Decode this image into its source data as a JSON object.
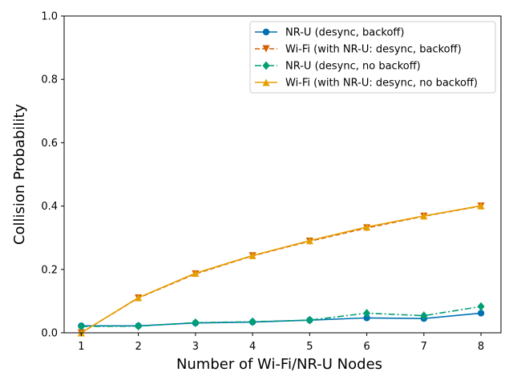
{
  "chart_data": {
    "type": "line",
    "title": "",
    "xlabel": "Number of Wi-Fi/NR-U Nodes",
    "ylabel": "Collision Probability",
    "x": [
      1,
      2,
      3,
      4,
      5,
      6,
      7,
      8
    ],
    "xlim": [
      0.7,
      8.35
    ],
    "ylim": [
      0,
      1.0
    ],
    "xticks": [
      "1",
      "2",
      "3",
      "4",
      "5",
      "6",
      "7",
      "8"
    ],
    "yticks": [
      "0.0",
      "0.2",
      "0.4",
      "0.6",
      "0.8",
      "1.0"
    ],
    "ytick_values": [
      0,
      0.2,
      0.4,
      0.6,
      0.8,
      1.0
    ],
    "grid": false,
    "legend_position": "top-right",
    "series": [
      {
        "name": "NR-U (desync, backoff)",
        "values": [
          0.022,
          0.022,
          0.031,
          0.034,
          0.04,
          0.047,
          0.045,
          0.062
        ],
        "color": "#0072b2",
        "linestyle": "solid",
        "marker": "circle"
      },
      {
        "name": "Wi-Fi (with NR-U: desync, backoff)",
        "values": [
          0.0,
          0.11,
          0.186,
          0.243,
          0.289,
          0.331,
          0.368,
          0.4
        ],
        "color": "#d55e00",
        "linestyle": "dashed",
        "marker": "triangle-down"
      },
      {
        "name": "NR-U (desync, no backoff)",
        "values": [
          0.02,
          0.021,
          0.032,
          0.035,
          0.04,
          0.062,
          0.054,
          0.083
        ],
        "color": "#009e73",
        "linestyle": "dashdot",
        "marker": "diamond"
      },
      {
        "name": "Wi-Fi (with NR-U: desync, no backoff)",
        "values": [
          0.0,
          0.111,
          0.188,
          0.244,
          0.291,
          0.334,
          0.369,
          0.401
        ],
        "color": "#e69f00",
        "linestyle": "solid",
        "marker": "triangle-up"
      }
    ]
  }
}
